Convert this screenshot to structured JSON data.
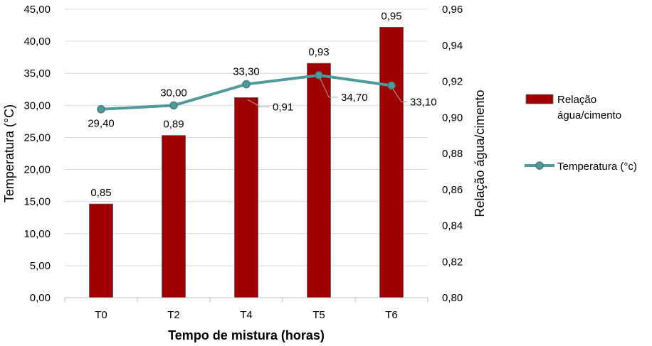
{
  "chart_data": {
    "type": "bar+line",
    "xlabel": "Tempo de mistura (horas)",
    "categories": [
      "T0",
      "T2",
      "T4",
      "T5",
      "T6"
    ],
    "left_axis": {
      "label": "Temperatura (°C)",
      "ylim": [
        0,
        45
      ],
      "step": 5,
      "ticks": [
        "0,00",
        "5,00",
        "10,00",
        "15,00",
        "20,00",
        "25,00",
        "30,00",
        "35,00",
        "40,00",
        "45,00"
      ]
    },
    "right_axis": {
      "label": "Relação água/cimento",
      "ylim": [
        0.8,
        0.96
      ],
      "step": 0.02,
      "ticks": [
        "0,80",
        "0,82",
        "0,84",
        "0,86",
        "0,88",
        "0,90",
        "0,92",
        "0,94",
        "0,96"
      ]
    },
    "series": [
      {
        "name": "Relação água/cimento",
        "kind": "bar",
        "axis": "right",
        "color": "#a00000",
        "values": [
          0.852,
          0.89,
          0.911,
          0.93,
          0.95
        ],
        "labels": [
          "0,85",
          "0,89",
          "0,91",
          "0,93",
          "0,95"
        ]
      },
      {
        "name": "Temperatura (°c)",
        "kind": "line",
        "axis": "left",
        "color": "#4f9a9a",
        "values": [
          29.4,
          30.0,
          33.3,
          34.7,
          33.1
        ],
        "labels": [
          "29,40",
          "30,00",
          "33,30",
          "34,70",
          "33,10"
        ]
      }
    ],
    "legend": {
      "position": "right",
      "entries": [
        "Relação água/cimento",
        "Temperatura (°c)"
      ]
    },
    "grid": true
  }
}
